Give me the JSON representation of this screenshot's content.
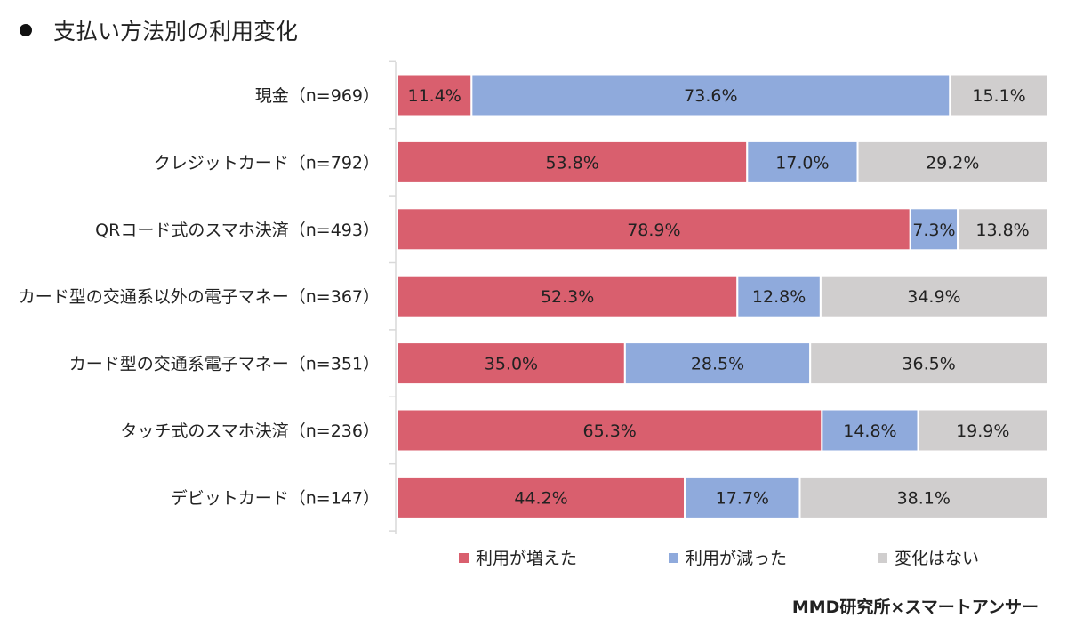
{
  "title": "支払い方法別の利用変化",
  "credit": "MMD研究所×スマートアンサー",
  "chart_data": {
    "type": "bar",
    "orientation": "horizontal",
    "stacked": true,
    "percent_stacked": true,
    "title": "支払い方法別の利用変化",
    "categories": [
      "現金（n=969）",
      "クレジットカード（n=792）",
      "QRコード式のスマホ決済（n=493）",
      "カード型の交通系以外の電子マネー（n=367）",
      "カード型の交通系電子マネー（n=351）",
      "タッチ式のスマホ決済（n=236）",
      "デビットカード（n=147）"
    ],
    "series": [
      {
        "name": "利用が増えた",
        "color": "#d95f6e",
        "values": [
          11.4,
          53.8,
          78.9,
          52.3,
          35.0,
          65.3,
          44.2
        ]
      },
      {
        "name": "利用が減った",
        "color": "#8faadc",
        "values": [
          73.6,
          17.0,
          7.3,
          12.8,
          28.5,
          14.8,
          17.7
        ]
      },
      {
        "name": "変化はない",
        "color": "#d0cece",
        "values": [
          15.1,
          29.2,
          13.8,
          34.9,
          36.5,
          19.9,
          38.1
        ]
      }
    ],
    "value_labels": [
      [
        "11.4%",
        "73.6%",
        "15.1%"
      ],
      [
        "53.8%",
        "17.0%",
        "29.2%"
      ],
      [
        "78.9%",
        "7.3%",
        "13.8%"
      ],
      [
        "52.3%",
        "12.8%",
        "34.9%"
      ],
      [
        "35.0%",
        "28.5%",
        "36.5%"
      ],
      [
        "65.3%",
        "14.8%",
        "19.9%"
      ],
      [
        "44.2%",
        "17.7%",
        "38.1%"
      ]
    ],
    "xlim": [
      0,
      100
    ],
    "legend_position": "bottom",
    "grid": false
  }
}
